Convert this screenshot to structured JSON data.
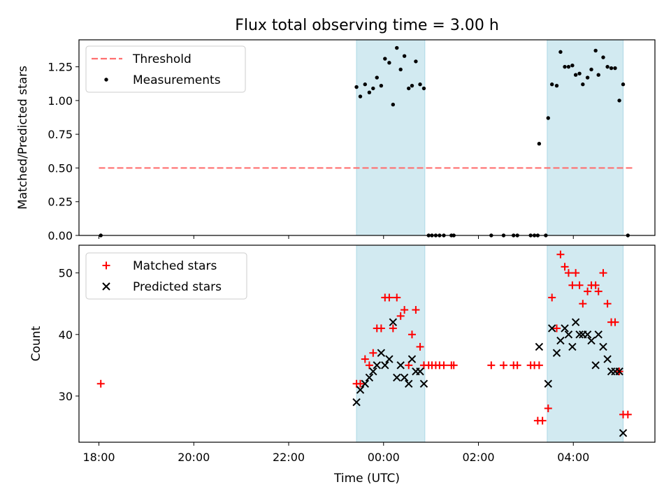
{
  "colors": {
    "band": "#add8e6",
    "threshold": "#ff6f6f",
    "measurement": "#000000",
    "matched": "#ff0000",
    "predicted": "#000000"
  },
  "chart_data": [
    {
      "type": "scatter",
      "title": "Flux total observing time = 3.00 h",
      "xlabel": "",
      "ylabel": "Matched/Predicted stars",
      "x_unit": "hours since 00:00 UTC",
      "xlim": [
        -6.42,
        5.72
      ],
      "ylim": [
        0,
        1.45
      ],
      "yticks": [
        0.0,
        0.25,
        0.5,
        0.75,
        1.0,
        1.25
      ],
      "ytick_labels": [
        "0.00",
        "0.25",
        "0.50",
        "0.75",
        "1.00",
        "1.25"
      ],
      "xticks": [
        -6,
        -4,
        -2,
        0,
        2,
        4
      ],
      "xtick_labels": [
        "",
        "",
        "",
        "",
        "",
        ""
      ],
      "legend": {
        "placement": "top-left",
        "entries": [
          "Threshold",
          "Measurements"
        ]
      },
      "bands": [
        [
          -0.57,
          0.87
        ],
        [
          3.45,
          5.05
        ]
      ],
      "threshold": {
        "label": "Threshold",
        "y": 0.5,
        "x_range": [
          -6.0,
          5.25
        ]
      },
      "measurements": {
        "name": "Measurements",
        "points": [
          [
            -5.96,
            0.0
          ],
          [
            -0.57,
            1.1
          ],
          [
            -0.49,
            1.03
          ],
          [
            -0.39,
            1.12
          ],
          [
            -0.3,
            1.06
          ],
          [
            -0.22,
            1.09
          ],
          [
            -0.14,
            1.17
          ],
          [
            -0.05,
            1.11
          ],
          [
            0.03,
            1.31
          ],
          [
            0.12,
            1.28
          ],
          [
            0.2,
            0.97
          ],
          [
            0.28,
            1.39
          ],
          [
            0.36,
            1.23
          ],
          [
            0.44,
            1.33
          ],
          [
            0.53,
            1.09
          ],
          [
            0.6,
            1.11
          ],
          [
            0.68,
            1.29
          ],
          [
            0.77,
            1.12
          ],
          [
            0.85,
            1.09
          ],
          [
            0.95,
            0.0
          ],
          [
            1.02,
            0.0
          ],
          [
            1.1,
            0.0
          ],
          [
            1.18,
            0.0
          ],
          [
            1.27,
            0.0
          ],
          [
            1.43,
            0.0
          ],
          [
            1.48,
            0.0
          ],
          [
            2.27,
            0.0
          ],
          [
            2.53,
            0.0
          ],
          [
            2.74,
            0.0
          ],
          [
            2.82,
            0.0
          ],
          [
            3.1,
            0.0
          ],
          [
            3.18,
            0.0
          ],
          [
            3.25,
            0.0
          ],
          [
            3.28,
            0.68
          ],
          [
            3.42,
            0.0
          ],
          [
            3.47,
            0.87
          ],
          [
            3.55,
            1.12
          ],
          [
            3.65,
            1.11
          ],
          [
            3.73,
            1.36
          ],
          [
            3.82,
            1.25
          ],
          [
            3.9,
            1.25
          ],
          [
            3.98,
            1.26
          ],
          [
            4.05,
            1.19
          ],
          [
            4.13,
            1.2
          ],
          [
            4.2,
            1.12
          ],
          [
            4.3,
            1.17
          ],
          [
            4.38,
            1.23
          ],
          [
            4.47,
            1.37
          ],
          [
            4.53,
            1.19
          ],
          [
            4.63,
            1.32
          ],
          [
            4.72,
            1.25
          ],
          [
            4.8,
            1.24
          ],
          [
            4.88,
            1.24
          ],
          [
            4.97,
            1.0
          ],
          [
            5.05,
            1.12
          ],
          [
            5.15,
            0.0
          ]
        ]
      }
    },
    {
      "type": "scatter",
      "title": "",
      "xlabel": "Time (UTC)",
      "ylabel": "Count",
      "x_unit": "hours since 00:00 UTC",
      "xlim": [
        -6.42,
        5.72
      ],
      "ylim": [
        22.5,
        54.5
      ],
      "yticks": [
        30,
        40,
        50
      ],
      "ytick_labels": [
        "30",
        "40",
        "50"
      ],
      "xticks": [
        -6,
        -4,
        -2,
        0,
        2,
        4
      ],
      "xtick_labels": [
        "18:00",
        "20:00",
        "22:00",
        "00:00",
        "02:00",
        "04:00"
      ],
      "legend": {
        "placement": "top-left",
        "entries": [
          "Matched stars",
          "Predicted stars"
        ]
      },
      "bands": [
        [
          -0.57,
          0.87
        ],
        [
          3.45,
          5.05
        ]
      ],
      "series": [
        {
          "name": "Matched stars",
          "marker": "plus",
          "points": [
            [
              -5.96,
              32
            ],
            [
              -0.57,
              32
            ],
            [
              -0.49,
              32
            ],
            [
              -0.39,
              36
            ],
            [
              -0.3,
              35
            ],
            [
              -0.22,
              37
            ],
            [
              -0.14,
              41
            ],
            [
              -0.05,
              41
            ],
            [
              0.03,
              46
            ],
            [
              0.12,
              46
            ],
            [
              0.2,
              41
            ],
            [
              0.28,
              46
            ],
            [
              0.36,
              43
            ],
            [
              0.44,
              44
            ],
            [
              0.53,
              35
            ],
            [
              0.6,
              40
            ],
            [
              0.68,
              44
            ],
            [
              0.77,
              38
            ],
            [
              0.85,
              35
            ],
            [
              0.95,
              35
            ],
            [
              1.02,
              35
            ],
            [
              1.1,
              35
            ],
            [
              1.18,
              35
            ],
            [
              1.27,
              35
            ],
            [
              1.43,
              35
            ],
            [
              1.48,
              35
            ],
            [
              2.27,
              35
            ],
            [
              2.53,
              35
            ],
            [
              2.74,
              35
            ],
            [
              2.82,
              35
            ],
            [
              3.1,
              35
            ],
            [
              3.18,
              35
            ],
            [
              3.25,
              26
            ],
            [
              3.28,
              35
            ],
            [
              3.35,
              26
            ],
            [
              3.47,
              28
            ],
            [
              3.55,
              46
            ],
            [
              3.65,
              41
            ],
            [
              3.73,
              53
            ],
            [
              3.82,
              51
            ],
            [
              3.9,
              50
            ],
            [
              3.98,
              48
            ],
            [
              4.05,
              50
            ],
            [
              4.13,
              48
            ],
            [
              4.2,
              45
            ],
            [
              4.3,
              47
            ],
            [
              4.38,
              48
            ],
            [
              4.47,
              48
            ],
            [
              4.53,
              47
            ],
            [
              4.63,
              50
            ],
            [
              4.72,
              45
            ],
            [
              4.8,
              42
            ],
            [
              4.88,
              42
            ],
            [
              4.97,
              34
            ],
            [
              5.05,
              27
            ],
            [
              5.15,
              27
            ]
          ]
        },
        {
          "name": "Predicted stars",
          "marker": "x",
          "points": [
            [
              -0.57,
              29
            ],
            [
              -0.49,
              31
            ],
            [
              -0.39,
              32
            ],
            [
              -0.3,
              33
            ],
            [
              -0.22,
              34
            ],
            [
              -0.14,
              35
            ],
            [
              -0.05,
              37
            ],
            [
              0.03,
              35
            ],
            [
              0.12,
              36
            ],
            [
              0.2,
              42
            ],
            [
              0.28,
              33
            ],
            [
              0.36,
              35
            ],
            [
              0.44,
              33
            ],
            [
              0.53,
              32
            ],
            [
              0.6,
              36
            ],
            [
              0.68,
              34
            ],
            [
              0.77,
              34
            ],
            [
              0.85,
              32
            ],
            [
              3.28,
              38
            ],
            [
              3.47,
              32
            ],
            [
              3.55,
              41
            ],
            [
              3.65,
              37
            ],
            [
              3.73,
              39
            ],
            [
              3.82,
              41
            ],
            [
              3.9,
              40
            ],
            [
              3.98,
              38
            ],
            [
              4.05,
              42
            ],
            [
              4.13,
              40
            ],
            [
              4.2,
              40
            ],
            [
              4.3,
              40
            ],
            [
              4.38,
              39
            ],
            [
              4.47,
              35
            ],
            [
              4.53,
              40
            ],
            [
              4.63,
              38
            ],
            [
              4.72,
              36
            ],
            [
              4.8,
              34
            ],
            [
              4.88,
              34
            ],
            [
              4.97,
              34
            ],
            [
              5.05,
              24
            ]
          ]
        }
      ]
    }
  ]
}
